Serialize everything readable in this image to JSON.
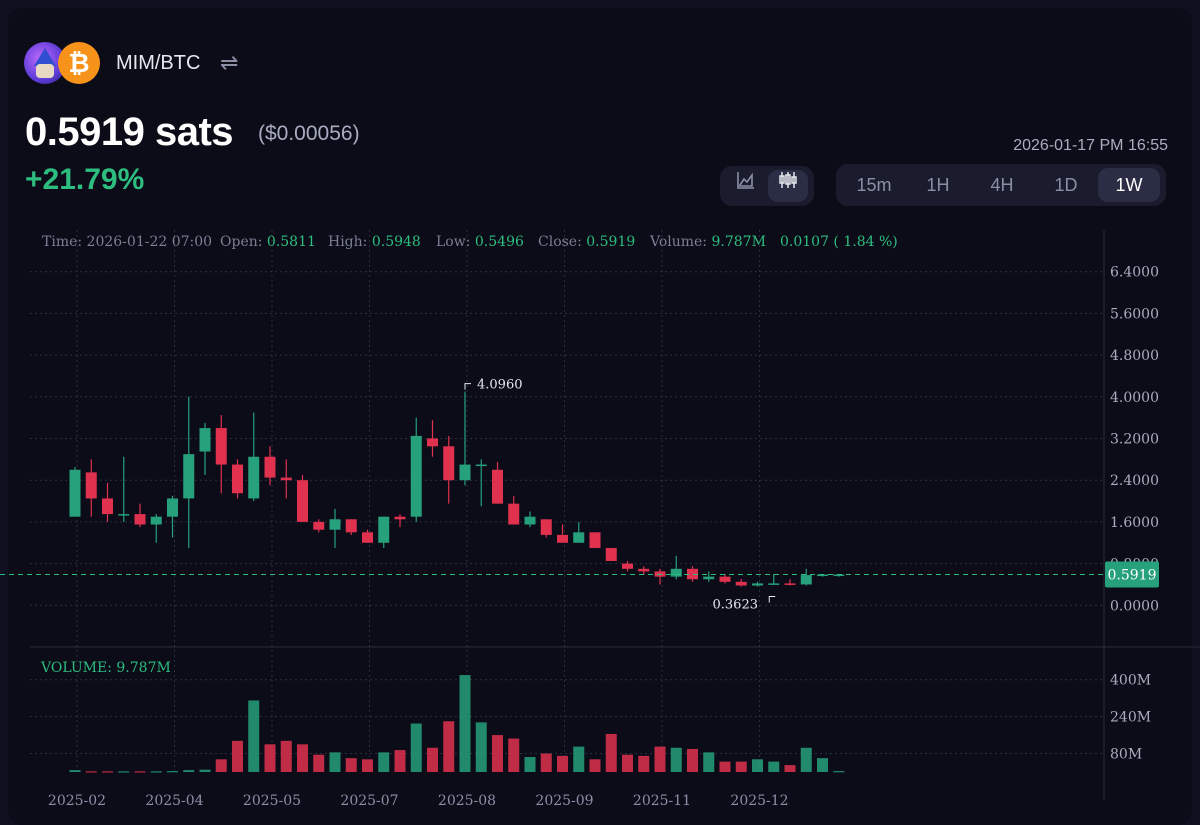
{
  "header": {
    "pair": "MIM/BTC",
    "swap_icon": "swap-arrows-icon",
    "price": "0.5919",
    "price_unit": "sats",
    "usd_price": "($0.00056)",
    "change": "+21.79%",
    "timestamp": "2026-01-17 PM 16:55"
  },
  "chart_type_toggle": [
    {
      "icon": "area-chart-icon",
      "active": false
    },
    {
      "icon": "candlestick-icon",
      "active": true
    }
  ],
  "timeframes": [
    {
      "label": "15m",
      "active": false
    },
    {
      "label": "1H",
      "active": false
    },
    {
      "label": "4H",
      "active": false
    },
    {
      "label": "1D",
      "active": false
    },
    {
      "label": "1W",
      "active": true
    }
  ],
  "ohlc_legend": {
    "time_label": "Time:",
    "time": "2026-01-22 07:00",
    "open_label": "Open:",
    "open": "0.5811",
    "high_label": "High:",
    "high": "0.5948",
    "low_label": "Low:",
    "low": "0.5496",
    "close_label": "Close:",
    "close": "0.5919",
    "volume_label": "Volume:",
    "volume": "9.787M",
    "change": "0.0107 ( 1.84 %)"
  },
  "volume_legend": "VOLUME: 9.787M",
  "colors": {
    "up": "#26a17b",
    "down": "#e0314f",
    "background": "#0b0c18",
    "price_line": "#2dbd7e"
  },
  "chart_data": {
    "type": "candlestick",
    "price_axis": {
      "ticks": [
        "6.4000",
        "5.6000",
        "4.8000",
        "4.0000",
        "3.2000",
        "2.4000",
        "1.6000",
        "0.8000",
        "0.0000"
      ],
      "min": -0.8,
      "max": 7.2
    },
    "volume_axis": {
      "ticks": [
        "400M",
        "240M",
        "80M"
      ],
      "max": 520
    },
    "x_axis": {
      "labels": [
        "2025-02",
        "2025-04",
        "2025-05",
        "2025-07",
        "2025-08",
        "2025-09",
        "2025-11",
        "2025-12"
      ]
    },
    "current_price_label": "0.5919",
    "max_label": "4.0960",
    "min_label": "0.3623",
    "candles": [
      {
        "o": 1.7,
        "h": 2.65,
        "l": 1.7,
        "c": 2.6,
        "v": 8
      },
      {
        "o": 2.55,
        "h": 2.8,
        "l": 1.7,
        "c": 2.05,
        "v": 3
      },
      {
        "o": 2.05,
        "h": 2.35,
        "l": 1.6,
        "c": 1.75,
        "v": 3
      },
      {
        "o": 1.75,
        "h": 2.85,
        "l": 1.6,
        "c": 1.75,
        "v": 3
      },
      {
        "o": 1.75,
        "h": 1.95,
        "l": 1.5,
        "c": 1.55,
        "v": 3
      },
      {
        "o": 1.55,
        "h": 1.75,
        "l": 1.2,
        "c": 1.7,
        "v": 3
      },
      {
        "o": 1.7,
        "h": 2.1,
        "l": 1.3,
        "c": 2.05,
        "v": 4
      },
      {
        "o": 2.05,
        "h": 4.0,
        "l": 1.1,
        "c": 2.9,
        "v": 8
      },
      {
        "o": 2.95,
        "h": 3.5,
        "l": 2.5,
        "c": 3.4,
        "v": 10
      },
      {
        "o": 3.4,
        "h": 3.65,
        "l": 2.15,
        "c": 2.7,
        "v": 55
      },
      {
        "o": 2.7,
        "h": 2.8,
        "l": 2.05,
        "c": 2.15,
        "v": 135
      },
      {
        "o": 2.05,
        "h": 3.7,
        "l": 2.0,
        "c": 2.85,
        "v": 310
      },
      {
        "o": 2.85,
        "h": 3.05,
        "l": 2.3,
        "c": 2.45,
        "v": 120
      },
      {
        "o": 2.45,
        "h": 2.8,
        "l": 2.05,
        "c": 2.4,
        "v": 135
      },
      {
        "o": 2.4,
        "h": 2.5,
        "l": 1.6,
        "c": 1.6,
        "v": 120
      },
      {
        "o": 1.6,
        "h": 1.65,
        "l": 1.4,
        "c": 1.45,
        "v": 75
      },
      {
        "o": 1.45,
        "h": 1.85,
        "l": 1.1,
        "c": 1.65,
        "v": 85
      },
      {
        "o": 1.65,
        "h": 1.65,
        "l": 1.35,
        "c": 1.4,
        "v": 60
      },
      {
        "o": 1.4,
        "h": 1.45,
        "l": 1.2,
        "c": 1.2,
        "v": 55
      },
      {
        "o": 1.2,
        "h": 1.7,
        "l": 1.1,
        "c": 1.7,
        "v": 85
      },
      {
        "o": 1.7,
        "h": 1.75,
        "l": 1.5,
        "c": 1.65,
        "v": 95
      },
      {
        "o": 1.7,
        "h": 3.6,
        "l": 1.6,
        "c": 3.25,
        "v": 210
      },
      {
        "o": 3.2,
        "h": 3.55,
        "l": 2.85,
        "c": 3.05,
        "v": 105
      },
      {
        "o": 3.05,
        "h": 3.25,
        "l": 1.95,
        "c": 2.4,
        "v": 220
      },
      {
        "o": 2.4,
        "h": 4.1,
        "l": 2.3,
        "c": 2.7,
        "v": 420
      },
      {
        "o": 2.7,
        "h": 2.8,
        "l": 1.9,
        "c": 2.7,
        "v": 215
      },
      {
        "o": 2.6,
        "h": 2.75,
        "l": 1.95,
        "c": 1.95,
        "v": 160
      },
      {
        "o": 1.95,
        "h": 2.1,
        "l": 1.55,
        "c": 1.55,
        "v": 145
      },
      {
        "o": 1.55,
        "h": 1.8,
        "l": 1.5,
        "c": 1.7,
        "v": 65
      },
      {
        "o": 1.65,
        "h": 1.65,
        "l": 1.3,
        "c": 1.35,
        "v": 80
      },
      {
        "o": 1.35,
        "h": 1.55,
        "l": 1.2,
        "c": 1.2,
        "v": 70
      },
      {
        "o": 1.2,
        "h": 1.6,
        "l": 1.2,
        "c": 1.4,
        "v": 110
      },
      {
        "o": 1.4,
        "h": 1.4,
        "l": 1.1,
        "c": 1.1,
        "v": 55
      },
      {
        "o": 1.1,
        "h": 1.1,
        "l": 0.85,
        "c": 0.85,
        "v": 165
      },
      {
        "o": 0.8,
        "h": 0.85,
        "l": 0.65,
        "c": 0.7,
        "v": 75
      },
      {
        "o": 0.7,
        "h": 0.75,
        "l": 0.58,
        "c": 0.65,
        "v": 70
      },
      {
        "o": 0.65,
        "h": 0.7,
        "l": 0.4,
        "c": 0.55,
        "v": 110
      },
      {
        "o": 0.55,
        "h": 0.95,
        "l": 0.5,
        "c": 0.7,
        "v": 105
      },
      {
        "o": 0.7,
        "h": 0.75,
        "l": 0.45,
        "c": 0.5,
        "v": 100
      },
      {
        "o": 0.5,
        "h": 0.65,
        "l": 0.45,
        "c": 0.55,
        "v": 85
      },
      {
        "o": 0.55,
        "h": 0.6,
        "l": 0.42,
        "c": 0.45,
        "v": 45
      },
      {
        "o": 0.45,
        "h": 0.5,
        "l": 0.36,
        "c": 0.38,
        "v": 45
      },
      {
        "o": 0.38,
        "h": 0.45,
        "l": 0.36,
        "c": 0.42,
        "v": 55
      },
      {
        "o": 0.42,
        "h": 0.6,
        "l": 0.4,
        "c": 0.42,
        "v": 45
      },
      {
        "o": 0.42,
        "h": 0.5,
        "l": 0.38,
        "c": 0.4,
        "v": 30
      },
      {
        "o": 0.4,
        "h": 0.7,
        "l": 0.38,
        "c": 0.58,
        "v": 105
      },
      {
        "o": 0.58,
        "h": 0.6,
        "l": 0.55,
        "c": 0.59,
        "v": 60
      },
      {
        "o": 0.58,
        "h": 0.59,
        "l": 0.55,
        "c": 0.59,
        "v": 4
      }
    ]
  }
}
